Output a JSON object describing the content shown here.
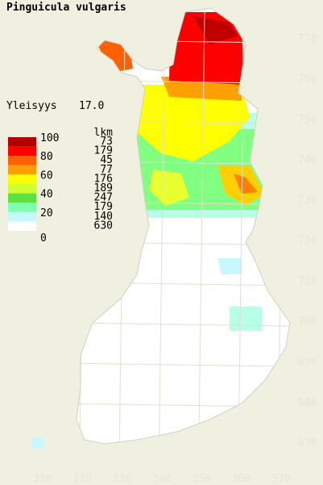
{
  "title": "Pinguicula vulgaris",
  "frequency": {
    "label": "Yleisyys",
    "value": "17.0"
  },
  "legend": {
    "levels": [
      100,
      80,
      60,
      40,
      20,
      0
    ],
    "count_header": "lkm",
    "counts": [
      73,
      179,
      45,
      77,
      176,
      189,
      247,
      179,
      140,
      630
    ]
  },
  "grid": {
    "north": [
      770,
      760,
      750,
      740,
      730,
      720,
      710,
      700,
      690,
      680,
      670
    ],
    "east": [
      310,
      320,
      330,
      340,
      350,
      360,
      370
    ]
  }
}
